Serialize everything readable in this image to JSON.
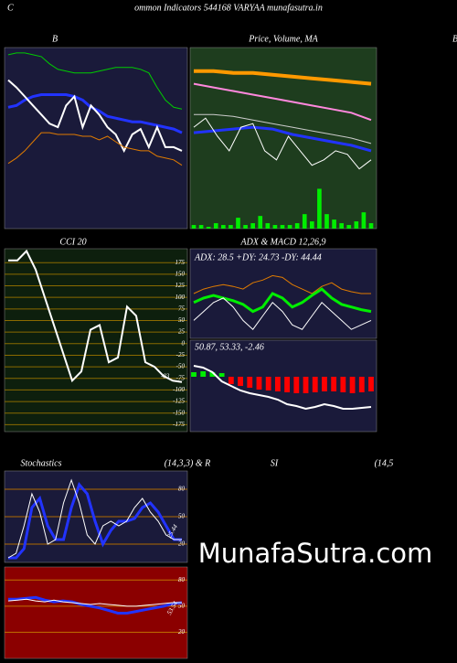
{
  "header": {
    "left": "C",
    "title": "ommon  Indicators 544168  VARYAA munafasutra.in",
    "edge": "B"
  },
  "watermark": "MunafaSutra.com",
  "chart_data": [
    {
      "type": "line",
      "title": "B",
      "background": "#1a1a3a",
      "ylim": [
        0,
        100
      ],
      "series": [
        {
          "color": "#00cc00",
          "width": 1,
          "values": [
            96,
            97,
            97,
            96,
            95,
            91,
            88,
            87,
            86,
            86,
            86,
            87,
            88,
            89,
            89,
            89,
            88,
            86,
            78,
            71,
            67,
            66
          ]
        },
        {
          "color": "#2233ff",
          "width": 3,
          "values": [
            67,
            68,
            71,
            73,
            74,
            74,
            74,
            74,
            73,
            71,
            67,
            65,
            62,
            61,
            60,
            59,
            59,
            58,
            57,
            56,
            55,
            53
          ]
        },
        {
          "color": "#ffffff",
          "width": 2,
          "values": [
            82,
            78,
            73,
            68,
            63,
            58,
            56,
            68,
            73,
            56,
            68,
            63,
            56,
            52,
            43,
            52,
            55,
            45,
            56,
            45,
            45,
            43
          ]
        },
        {
          "color": "#e07b00",
          "width": 1,
          "values": [
            36,
            39,
            43,
            48,
            53,
            53,
            52,
            52,
            52,
            51,
            51,
            49,
            51,
            48,
            45,
            44,
            43,
            43,
            40,
            39,
            38,
            35
          ]
        }
      ]
    },
    {
      "type": "line",
      "title": "Price, Volume, MA",
      "background": "#1e3d1e",
      "ylim": [
        0,
        100
      ],
      "series": [
        {
          "type": "bar",
          "color": "#00ee00",
          "values": [
            2,
            2,
            1,
            3,
            2,
            2,
            6,
            2,
            3,
            7,
            3,
            2,
            2,
            2,
            3,
            8,
            4,
            22,
            8,
            5,
            3,
            2,
            4,
            9,
            3
          ]
        },
        {
          "color": "#ff9900",
          "width": 4,
          "values": [
            87,
            87,
            86,
            86,
            85,
            84,
            83,
            82,
            81,
            80
          ]
        },
        {
          "color": "#ff88dd",
          "width": 2,
          "values": [
            80,
            78,
            76,
            74,
            72,
            70,
            68,
            66,
            64,
            60
          ]
        },
        {
          "color": "#cccccc",
          "width": 1,
          "values": [
            63,
            63,
            62,
            60,
            58,
            56,
            54,
            52,
            50,
            47
          ]
        },
        {
          "color": "#2233ff",
          "width": 3,
          "values": [
            53,
            54,
            55,
            56,
            55,
            52,
            50,
            48,
            46,
            43
          ]
        },
        {
          "color": "#ffffff",
          "width": 1,
          "values": [
            56,
            61,
            51,
            43,
            56,
            58,
            43,
            38,
            51,
            43,
            35,
            38,
            43,
            41,
            33,
            38
          ]
        }
      ]
    },
    {
      "type": "line",
      "title": "CCI 20",
      "background": "#0d1f0d",
      "grid_color": "#8a6a00",
      "ylim": [
        -190,
        205
      ],
      "yticks": [
        175,
        150,
        125,
        100,
        75,
        50,
        25,
        0,
        -25,
        -50,
        -75,
        -100,
        -125,
        -150,
        -175
      ],
      "annotation": "-83",
      "series": [
        {
          "color": "#ffffff",
          "width": 2,
          "values": [
            180,
            180,
            200,
            160,
            100,
            40,
            -20,
            -80,
            -60,
            30,
            40,
            -40,
            -30,
            80,
            60,
            -40,
            -50,
            -70,
            -80,
            -83
          ]
        }
      ]
    },
    {
      "type": "line",
      "title": "ADX  & MACD 12,26,9",
      "subtitle": "ADX: 28.5 +DY: 24.73 -DY: 44.44",
      "background": "#1a1a3a",
      "ylim": [
        0,
        100
      ],
      "series": [
        {
          "color": "#e07b00",
          "width": 1,
          "values": [
            50,
            55,
            58,
            60,
            58,
            55,
            62,
            65,
            70,
            68,
            60,
            55,
            50,
            58,
            62,
            55,
            52,
            50,
            50
          ]
        },
        {
          "color": "#00ee00",
          "width": 3,
          "values": [
            40,
            45,
            48,
            45,
            42,
            38,
            30,
            35,
            50,
            45,
            35,
            40,
            48,
            55,
            45,
            38,
            35,
            32,
            30
          ]
        },
        {
          "color": "#ffffff",
          "width": 1,
          "values": [
            20,
            30,
            40,
            45,
            35,
            20,
            10,
            25,
            40,
            30,
            15,
            10,
            25,
            40,
            30,
            20,
            10,
            15,
            20
          ]
        }
      ]
    },
    {
      "type": "line",
      "subtitle": "50.87,  53.33,  -2.46",
      "background": "#1a1a3a",
      "ylim": [
        -60,
        40
      ],
      "series": [
        {
          "type": "bar",
          "color": "#00ee00",
          "values": [
            5,
            6,
            5,
            4,
            null,
            null,
            null,
            null,
            null,
            null,
            null,
            null,
            null,
            null,
            null,
            null,
            null,
            null,
            null,
            null
          ]
        },
        {
          "type": "bar",
          "color": "#ff0000",
          "values": [
            null,
            null,
            null,
            null,
            -8,
            -10,
            -12,
            -14,
            -15,
            -16,
            -17,
            -18,
            -18,
            -17,
            -16,
            -16,
            -17,
            -18,
            -17,
            -16
          ]
        },
        {
          "color": "#ffffff",
          "width": 2,
          "values": [
            12,
            10,
            5,
            -5,
            -10,
            -15,
            -18,
            -20,
            -22,
            -25,
            -30,
            -32,
            -35,
            -33,
            -30,
            -32,
            -35,
            -35,
            -34,
            -33
          ]
        }
      ]
    },
    {
      "type": "line",
      "title": "Stochastics",
      "subtitle": "(14,3,3) & R",
      "background": "#1a1a3a",
      "grid_color": "#b06a00",
      "ylim": [
        0,
        100
      ],
      "yticks": [
        80,
        50,
        20
      ],
      "annotation": "25.44",
      "series": [
        {
          "color": "#2233ff",
          "width": 3,
          "values": [
            5,
            5,
            15,
            60,
            70,
            40,
            25,
            25,
            60,
            85,
            75,
            45,
            20,
            35,
            45,
            45,
            48,
            60,
            65,
            55,
            40,
            25,
            25
          ]
        },
        {
          "color": "#ffffff",
          "width": 1,
          "values": [
            5,
            10,
            40,
            75,
            55,
            20,
            25,
            65,
            90,
            65,
            30,
            20,
            40,
            45,
            40,
            45,
            60,
            70,
            55,
            45,
            30,
            25,
            25
          ]
        }
      ]
    },
    {
      "type": "line",
      "title": "SI",
      "subtitle": "(14,5",
      "background": "#8b0000",
      "grid_color": "#c07000",
      "ylim": [
        -10,
        95
      ],
      "yticks": [
        80,
        50,
        20
      ],
      "annotation": "53.54",
      "series": [
        {
          "color": "#2233ff",
          "width": 3,
          "values": [
            58,
            58,
            59,
            60,
            57,
            55,
            56,
            55,
            52,
            50,
            48,
            45,
            42,
            42,
            44,
            46,
            48,
            50,
            53,
            54
          ]
        },
        {
          "color": "#ffffff",
          "width": 1,
          "values": [
            56,
            57,
            58,
            56,
            55,
            57,
            55,
            54,
            53,
            52,
            53,
            52,
            51,
            50,
            50,
            51,
            52,
            53,
            54,
            54
          ]
        }
      ]
    }
  ]
}
